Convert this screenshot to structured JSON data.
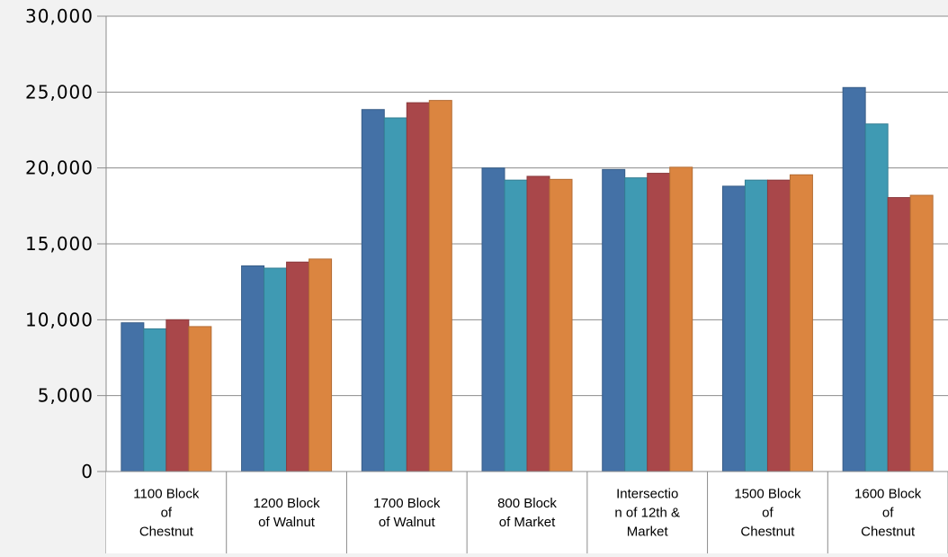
{
  "chart_data": {
    "type": "bar",
    "categories": [
      [
        "1100 Block",
        "of",
        "Chestnut"
      ],
      [
        "1200 Block",
        "of Walnut"
      ],
      [
        "1700 Block",
        "of Walnut"
      ],
      [
        "800 Block",
        "of Market"
      ],
      [
        "Intersectio",
        "n of 12th &",
        "Market"
      ],
      [
        "1500 Block",
        "of",
        "Chestnut"
      ],
      [
        "1600 Block",
        "of",
        "Chestnut"
      ]
    ],
    "series": [
      {
        "values": [
          9800,
          13550,
          23850,
          20000,
          19900,
          18800,
          25300
        ],
        "color": "#4471a6"
      },
      {
        "values": [
          9400,
          13400,
          23300,
          19200,
          19350,
          19200,
          22900
        ],
        "color": "#3f9ab3"
      },
      {
        "values": [
          10000,
          13800,
          24300,
          19450,
          19650,
          19200,
          18050
        ],
        "color": "#a9474a"
      },
      {
        "values": [
          9550,
          14000,
          24450,
          19250,
          20050,
          19550,
          18200
        ],
        "color": "#db8540"
      }
    ],
    "yticks": [
      "0",
      "5,000",
      "10,000",
      "15,000",
      "20,000",
      "25,000",
      "30,000"
    ],
    "ylim": [
      0,
      30000
    ],
    "grid": true,
    "title": "",
    "xlabel": "",
    "ylabel": ""
  }
}
